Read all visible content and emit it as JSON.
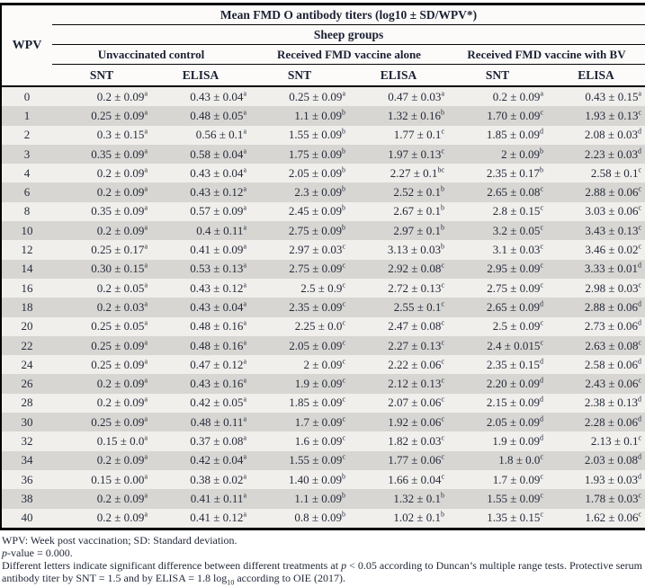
{
  "table": {
    "title": "Mean FMD O antibody titers (log10 ± SD/WPV*)",
    "wpv_header": "WPV",
    "group_header": "Sheep groups",
    "groups": [
      "Unvaccinated control",
      "Received FMD vaccine alone",
      "Received FMD vaccine with BV"
    ],
    "subcolumns": [
      "SNT",
      "ELISA"
    ],
    "rows": [
      {
        "wpv": "0",
        "cells": [
          [
            "0.2 ± 0.09",
            "a"
          ],
          [
            "0.43 ± 0.04",
            "a"
          ],
          [
            "0.25 ± 0.09",
            "a"
          ],
          [
            "0.47 ± 0.03",
            "a"
          ],
          [
            "0.2 ± 0.09",
            "a"
          ],
          [
            "0.43 ± 0.15",
            "a"
          ]
        ]
      },
      {
        "wpv": "1",
        "cells": [
          [
            "0.25 ± 0.09",
            "a"
          ],
          [
            "0.48 ± 0.05",
            "a"
          ],
          [
            "1.1 ± 0.09",
            "b"
          ],
          [
            "1.32 ± 0.16",
            "b"
          ],
          [
            "1.70 ± 0.09",
            "c"
          ],
          [
            "1.93 ± 0.13",
            "c"
          ]
        ]
      },
      {
        "wpv": "2",
        "cells": [
          [
            "0.3 ± 0.15",
            "a"
          ],
          [
            "0.56 ± 0.1",
            "a"
          ],
          [
            "1.55 ± 0.09",
            "b"
          ],
          [
            "1.77 ± 0.1",
            "c"
          ],
          [
            "1.85 ± 0.09",
            "d"
          ],
          [
            "2.08 ± 0.03",
            "d"
          ]
        ]
      },
      {
        "wpv": "3",
        "cells": [
          [
            "0.35 ± 0.09",
            "a"
          ],
          [
            "0.58 ± 0.04",
            "a"
          ],
          [
            "1.75 ± 0.09",
            "b"
          ],
          [
            "1.97 ± 0.13",
            "c"
          ],
          [
            "2 ± 0.09",
            "b"
          ],
          [
            "2.23 ± 0.03",
            "d"
          ]
        ]
      },
      {
        "wpv": "4",
        "cells": [
          [
            "0.2 ± 0.09",
            "a"
          ],
          [
            "0.43 ± 0.04",
            "a"
          ],
          [
            "2.05 ± 0.09",
            "b"
          ],
          [
            "2.27 ± 0.1",
            "bc"
          ],
          [
            "2.35 ± 0.17",
            "b"
          ],
          [
            "2.58 ± 0.1",
            "c"
          ]
        ]
      },
      {
        "wpv": "6",
        "cells": [
          [
            "0.2 ± 0.09",
            "a"
          ],
          [
            "0.43 ± 0.12",
            "a"
          ],
          [
            "2.3 ± 0.09",
            "b"
          ],
          [
            "2.52 ± 0.1",
            "b"
          ],
          [
            "2.65 ± 0.08",
            "c"
          ],
          [
            "2.88 ± 0.06",
            "c"
          ]
        ]
      },
      {
        "wpv": "8",
        "cells": [
          [
            "0.35 ± 0.09",
            "a"
          ],
          [
            "0.57 ± 0.09",
            "a"
          ],
          [
            "2.45 ± 0.09",
            "b"
          ],
          [
            "2.67 ± 0.1",
            "b"
          ],
          [
            "2.8 ± 0.15",
            "c"
          ],
          [
            "3.03 ± 0.06",
            "c"
          ]
        ]
      },
      {
        "wpv": "10",
        "cells": [
          [
            "0.2 ± 0.09",
            "a"
          ],
          [
            "0.4 ± 0.11",
            "a"
          ],
          [
            "2.75 ± 0.09",
            "b"
          ],
          [
            "2.97 ± 0.1",
            "b"
          ],
          [
            "3.2 ± 0.05",
            "c"
          ],
          [
            "3.43 ± 0.13",
            "c"
          ]
        ]
      },
      {
        "wpv": "12",
        "cells": [
          [
            "0.25 ± 0.17",
            "a"
          ],
          [
            "0.41 ± 0.09",
            "a"
          ],
          [
            "2.97 ± 0.03",
            "c"
          ],
          [
            "3.13 ± 0.03",
            "b"
          ],
          [
            "3.1 ± 0.03",
            "c"
          ],
          [
            "3.46 ± 0.02",
            "c"
          ]
        ]
      },
      {
        "wpv": "14",
        "cells": [
          [
            "0.30 ± 0.15",
            "a"
          ],
          [
            "0.53 ± 0.13",
            "a"
          ],
          [
            "2.75 ± 0.09",
            "c"
          ],
          [
            "2.92 ± 0.08",
            "c"
          ],
          [
            "2.95 ± 0.09",
            "c"
          ],
          [
            "3.33 ± 0.01",
            "d"
          ]
        ]
      },
      {
        "wpv": "16",
        "cells": [
          [
            "0.2 ± 0.05",
            "a"
          ],
          [
            "0.43 ± 0.12",
            "a"
          ],
          [
            "2.5 ± 0.9",
            "c"
          ],
          [
            "2.72 ± 0.13",
            "c"
          ],
          [
            "2.75 ± 0.09",
            "c"
          ],
          [
            "2.98 ± 0.03",
            "c"
          ]
        ]
      },
      {
        "wpv": "18",
        "cells": [
          [
            "0.2 ± 0.03",
            "a"
          ],
          [
            "0.43 ± 0.04",
            "a"
          ],
          [
            "2.35 ± 0.09",
            "c"
          ],
          [
            "2.55 ± 0.1",
            "c"
          ],
          [
            "2.65 ± 0.09",
            "d"
          ],
          [
            "2.88 ± 0.06",
            "d"
          ]
        ]
      },
      {
        "wpv": "20",
        "cells": [
          [
            "0.25 ± 0.05",
            "a"
          ],
          [
            "0.48 ± 0.16",
            "a"
          ],
          [
            "2.25 ± 0.0",
            "c"
          ],
          [
            "2.47 ± 0.08",
            "c"
          ],
          [
            "2.5 ± 0.09",
            "c"
          ],
          [
            "2.73 ± 0.06",
            "d"
          ]
        ]
      },
      {
        "wpv": "22",
        "cells": [
          [
            "0.25 ± 0.09",
            "a"
          ],
          [
            "0.48 ± 0.16",
            "a"
          ],
          [
            "2.05 ± 0.09",
            "c"
          ],
          [
            "2.27 ± 0.13",
            "c"
          ],
          [
            "2.4 ± 0.015",
            "c"
          ],
          [
            "2.63 ± 0.08",
            "c"
          ]
        ]
      },
      {
        "wpv": "24",
        "cells": [
          [
            "0.25 ± 0.09",
            "a"
          ],
          [
            "0.47 ± 0.12",
            "a"
          ],
          [
            "2 ± 0.09",
            "c"
          ],
          [
            "2.22 ± 0.06",
            "c"
          ],
          [
            "2.35 ± 0.15",
            "d"
          ],
          [
            "2.58 ± 0.06",
            "d"
          ]
        ]
      },
      {
        "wpv": "26",
        "cells": [
          [
            "0.2 ± 0.09",
            "a"
          ],
          [
            "0.43 ± 0.16",
            "a"
          ],
          [
            "1.9 ± 0.09",
            "c"
          ],
          [
            "2.12 ± 0.13",
            "c"
          ],
          [
            "2.20 ± 0.09",
            "d"
          ],
          [
            "2.43 ± 0.06",
            "c"
          ]
        ]
      },
      {
        "wpv": "28",
        "cells": [
          [
            "0.2 ± 0.09",
            "a"
          ],
          [
            "0.42 ± 0.05",
            "a"
          ],
          [
            "1.85 ± 0.09",
            "c"
          ],
          [
            "2.07 ± 0.06",
            "c"
          ],
          [
            "2.15 ± 0.09",
            "d"
          ],
          [
            "2.38 ± 0.13",
            "d"
          ]
        ]
      },
      {
        "wpv": "30",
        "cells": [
          [
            "0.25 ± 0.09",
            "a"
          ],
          [
            "0.48 ± 0.11",
            "a"
          ],
          [
            "1.7 ± 0.09",
            "c"
          ],
          [
            "1.92 ± 0.06",
            "c"
          ],
          [
            "2.05 ± 0.09",
            "d"
          ],
          [
            "2.28 ± 0.06",
            "d"
          ]
        ]
      },
      {
        "wpv": "32",
        "cells": [
          [
            "0.15 ± 0.0",
            "a"
          ],
          [
            "0.37 ± 0.08",
            "a"
          ],
          [
            "1.6 ± 0.09",
            "c"
          ],
          [
            "1.82 ± 0.03",
            "c"
          ],
          [
            "1.9 ± 0.09",
            "d"
          ],
          [
            "2.13 ± 0.1",
            "c"
          ]
        ]
      },
      {
        "wpv": "34",
        "cells": [
          [
            "0.2 ± 0.09",
            "a"
          ],
          [
            "0.42 ± 0.04",
            "a"
          ],
          [
            "1.55 ± 0.09",
            "c"
          ],
          [
            "1.77 ± 0.06",
            "c"
          ],
          [
            "1.8 ± 0.0",
            "c"
          ],
          [
            "2.03 ± 0.08",
            "d"
          ]
        ]
      },
      {
        "wpv": "36",
        "cells": [
          [
            "0.15 ± 0.00",
            "a"
          ],
          [
            "0.38 ± 0.02",
            "a"
          ],
          [
            "1.40 ± 0.09",
            "b"
          ],
          [
            "1.66 ± 0.04",
            "c"
          ],
          [
            "1.7 ± 0.09",
            "c"
          ],
          [
            "1.93 ± 0.03",
            "d"
          ]
        ]
      },
      {
        "wpv": "38",
        "cells": [
          [
            "0.2 ± 0.09",
            "a"
          ],
          [
            "0.41 ± 0.11",
            "a"
          ],
          [
            "1.1 ± 0.09",
            "b"
          ],
          [
            "1.32 ± 0.1",
            "b"
          ],
          [
            "1.55 ± 0.09",
            "c"
          ],
          [
            "1.78 ± 0.03",
            "c"
          ]
        ]
      },
      {
        "wpv": "40",
        "cells": [
          [
            "0.2 ± 0.09",
            "a"
          ],
          [
            "0.41 ± 0.12",
            "a"
          ],
          [
            "0.8 ± 0.09",
            "b"
          ],
          [
            "1.02 ± 0.1",
            "b"
          ],
          [
            "1.35 ± 0.15",
            "c"
          ],
          [
            "1.62 ± 0.06",
            "c"
          ]
        ]
      }
    ]
  },
  "notes": {
    "abbrev": "WPV: Week post vaccination; SD: Standard deviation.",
    "p_italic": "p",
    "p_rest": "-value = 0.000.",
    "sig_part1": "Different letters indicate significant difference between different treatments at ",
    "sig_italic": "p",
    "sig_part2": " < 0.05 according to Duncan’s multiple range tests. Protective serum antibody titer by SNT = 1.5 and by ELISA = 1.8 log",
    "sig_sub": "10",
    "sig_part3": " according to OIE (2017)."
  },
  "colors": {
    "row_light": "#f1efec",
    "row_dark": "#d8d6d3",
    "border": "#050505",
    "text": "#232a3a"
  }
}
